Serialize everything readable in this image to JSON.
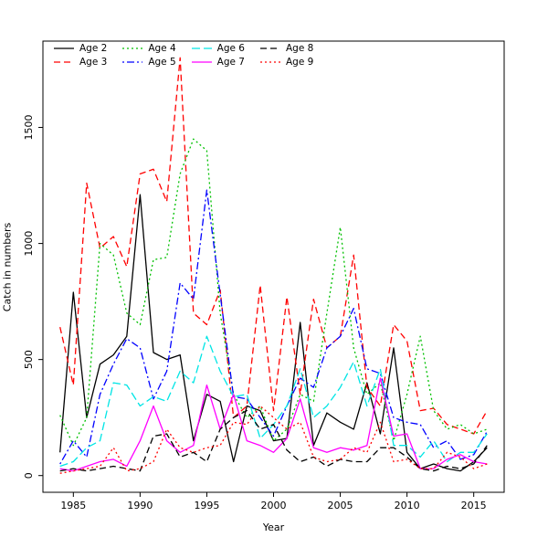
{
  "figure": {
    "background": "#ffffff"
  },
  "chart_data": {
    "type": "line",
    "title": "",
    "xlabel": "Year",
    "ylabel": "Catch in numbers",
    "xlim": [
      1984,
      2016
    ],
    "ylim": [
      0,
      1800
    ],
    "x_ticks": [
      1985,
      1990,
      1995,
      2000,
      2005,
      2010,
      2015
    ],
    "y_ticks": [
      0,
      500,
      1000,
      1500
    ],
    "grid": false,
    "legend_position": "top-left",
    "x": [
      1984,
      1985,
      1986,
      1987,
      1988,
      1989,
      1990,
      1991,
      1992,
      1993,
      1994,
      1995,
      1996,
      1997,
      1998,
      1999,
      2000,
      2001,
      2002,
      2003,
      2004,
      2005,
      2006,
      2007,
      2008,
      2009,
      2010,
      2011,
      2012,
      2013,
      2014,
      2015,
      2016
    ],
    "series": [
      {
        "name": "Age 2",
        "color": "#000000",
        "linestyle": "solid",
        "values": [
          100,
          790,
          250,
          480,
          520,
          600,
          1210,
          530,
          500,
          520,
          150,
          350,
          320,
          60,
          300,
          280,
          150,
          160,
          660,
          130,
          270,
          230,
          200,
          400,
          180,
          550,
          100,
          30,
          50,
          30,
          20,
          60,
          120
        ]
      },
      {
        "name": "Age 3",
        "color": "#ff0000",
        "linestyle": "dashed",
        "values": [
          640,
          390,
          1260,
          980,
          1030,
          900,
          1300,
          1320,
          1180,
          1800,
          700,
          650,
          800,
          250,
          300,
          820,
          280,
          770,
          350,
          760,
          550,
          600,
          950,
          380,
          300,
          650,
          580,
          280,
          290,
          220,
          200,
          180,
          280
        ]
      },
      {
        "name": "Age 4",
        "color": "#00c000",
        "linestyle": "dotted",
        "values": [
          260,
          130,
          250,
          1000,
          950,
          700,
          650,
          930,
          940,
          1300,
          1450,
          1400,
          700,
          350,
          250,
          300,
          150,
          200,
          350,
          320,
          700,
          1070,
          550,
          350,
          400,
          150,
          350,
          600,
          280,
          200,
          220,
          180,
          200
        ]
      },
      {
        "name": "Age 5",
        "color": "#0000ff",
        "linestyle": "dotdash",
        "values": [
          50,
          150,
          80,
          350,
          480,
          590,
          550,
          330,
          450,
          830,
          760,
          1230,
          780,
          340,
          330,
          250,
          170,
          300,
          420,
          380,
          550,
          600,
          720,
          460,
          440,
          250,
          230,
          220,
          120,
          150,
          70,
          90,
          190
        ]
      },
      {
        "name": "Age 6",
        "color": "#00e5e5",
        "linestyle": "longdash",
        "values": [
          40,
          60,
          120,
          150,
          400,
          390,
          300,
          340,
          320,
          450,
          400,
          600,
          450,
          340,
          350,
          160,
          220,
          300,
          460,
          250,
          300,
          380,
          490,
          300,
          460,
          130,
          130,
          80,
          150,
          60,
          100,
          100,
          180
        ]
      },
      {
        "name": "Age 7",
        "color": "#ff00ff",
        "linestyle": "solid",
        "values": [
          30,
          20,
          40,
          60,
          70,
          40,
          150,
          300,
          150,
          100,
          130,
          390,
          200,
          350,
          150,
          130,
          100,
          160,
          330,
          120,
          100,
          120,
          110,
          130,
          420,
          170,
          180,
          30,
          30,
          70,
          90,
          60,
          50
        ]
      },
      {
        "name": "Age 8",
        "color": "#000000",
        "linestyle": "dashed",
        "values": [
          20,
          30,
          20,
          30,
          40,
          30,
          20,
          170,
          180,
          80,
          100,
          60,
          200,
          250,
          280,
          200,
          220,
          110,
          60,
          80,
          40,
          70,
          60,
          60,
          120,
          120,
          80,
          30,
          20,
          40,
          30,
          50,
          130
        ]
      },
      {
        "name": "Age 9",
        "color": "#ff0000",
        "linestyle": "dotted",
        "values": [
          10,
          20,
          30,
          40,
          120,
          20,
          30,
          60,
          200,
          120,
          100,
          120,
          130,
          230,
          220,
          300,
          250,
          200,
          230,
          80,
          60,
          70,
          120,
          100,
          230,
          60,
          70,
          30,
          30,
          100,
          80,
          30,
          50
        ]
      }
    ]
  }
}
